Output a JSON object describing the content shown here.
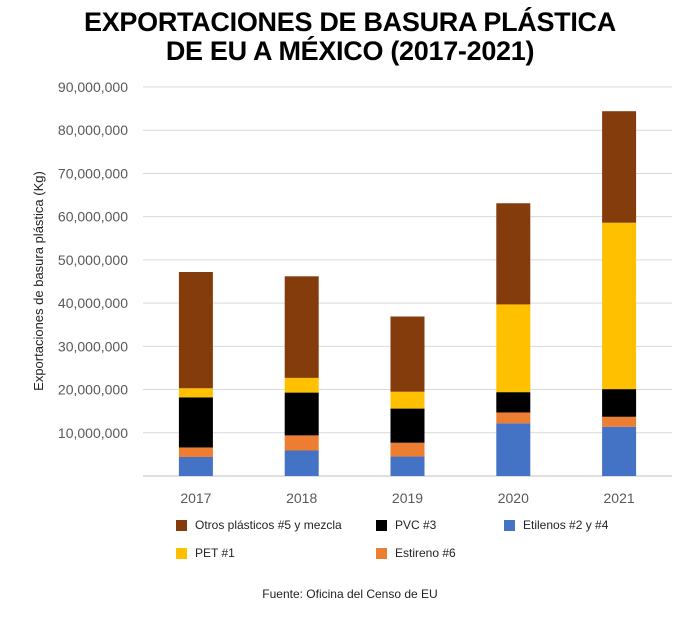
{
  "chart_data": {
    "type": "bar",
    "stacked": true,
    "title_lines": [
      "EXPORTACIONES DE BASURA PLÁSTICA",
      "DE EU A MÉXICO (2017-2021)"
    ],
    "xlabel": "",
    "ylabel": "Exportaciones de basura plástica (Kg)",
    "ylim": [
      0,
      90000000
    ],
    "yticks": [
      0,
      10000000,
      20000000,
      30000000,
      40000000,
      50000000,
      60000000,
      70000000,
      80000000,
      90000000
    ],
    "ytick_labels": [
      "",
      "10,000,000",
      "20,000,000",
      "30,000,000",
      "40,000,000",
      "50,000,000",
      "60,000,000",
      "70,000,000",
      "80,000,000",
      "90,000,000"
    ],
    "grid": true,
    "legend_position": "bottom",
    "categories": [
      "2017",
      "2018",
      "2019",
      "2020",
      "2021"
    ],
    "series": [
      {
        "name": "Etilenos #2 y #4",
        "color": "#4472C4",
        "values": [
          4400000,
          5900000,
          4500000,
          12200000,
          11400000
        ]
      },
      {
        "name": "Estireno #6",
        "color": "#ED7D31",
        "values": [
          2200000,
          3500000,
          3200000,
          2500000,
          2300000
        ]
      },
      {
        "name": "PVC #3",
        "color": "#000000",
        "values": [
          11600000,
          9900000,
          7900000,
          4700000,
          6400000
        ]
      },
      {
        "name": "PET #1",
        "color": "#FFC000",
        "values": [
          2100000,
          3400000,
          3900000,
          20300000,
          38500000
        ]
      },
      {
        "name": "Otros plásticos #5 y mezcla",
        "color": "#843C0C",
        "values": [
          26900000,
          23500000,
          17400000,
          23400000,
          25800000
        ]
      }
    ],
    "legend_order": [
      "Otros plásticos #5 y mezcla",
      "PVC #3",
      "Etilenos #2 y #4",
      "PET #1",
      "Estireno #6"
    ]
  },
  "source": "Fuente: Oficina del Censo de EU"
}
